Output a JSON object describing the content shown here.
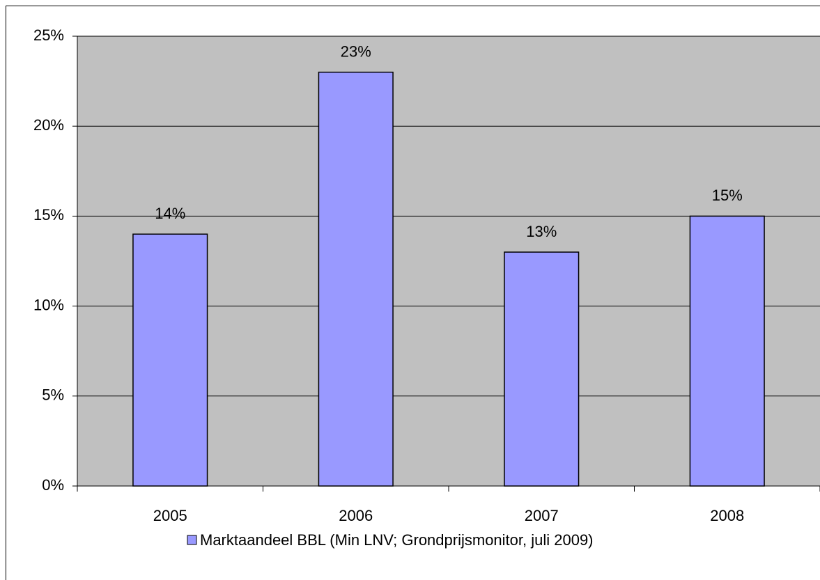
{
  "chart_data": {
    "type": "bar",
    "categories": [
      "2005",
      "2006",
      "2007",
      "2008"
    ],
    "series": [
      {
        "name": "Marktaandeel BBL (Min LNV; Grondprijsmonitor, juli 2009)",
        "color": "#9999ff",
        "values": [
          14,
          23,
          13,
          15
        ],
        "value_labels": [
          "14%",
          "23%",
          "13%",
          "15%"
        ]
      }
    ],
    "ylim": [
      0,
      25
    ],
    "yticks": [
      {
        "value": 0,
        "label": "0%"
      },
      {
        "value": 5,
        "label": "5%"
      },
      {
        "value": 10,
        "label": "10%"
      },
      {
        "value": 15,
        "label": "15%"
      },
      {
        "value": 20,
        "label": "20%"
      },
      {
        "value": 25,
        "label": "25%"
      }
    ],
    "grid": true,
    "legend": "bottom"
  }
}
